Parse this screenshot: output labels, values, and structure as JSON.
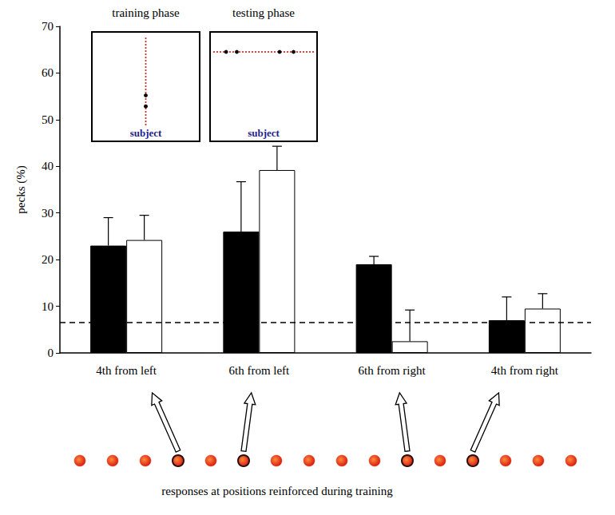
{
  "chart_data": {
    "type": "bar",
    "categories": [
      "4th from left",
      "6th from left",
      "6th from right",
      "4th from right"
    ],
    "series": [
      {
        "color": "#000000",
        "values": [
          23,
          26,
          19,
          7
        ],
        "errors": [
          6,
          10.7,
          1.7,
          5
        ]
      },
      {
        "color": "#ffffff",
        "values": [
          24.2,
          39.2,
          2.5,
          9.5
        ],
        "errors": [
          5.3,
          5.1,
          6.7,
          3.2
        ]
      }
    ],
    "y_label": "pecks (%)",
    "ylim": [
      0,
      70
    ],
    "yticks": [
      0,
      10,
      20,
      30,
      40,
      50,
      60,
      70
    ],
    "reference_line": 6.5,
    "grid": false,
    "insets": [
      {
        "title": "training phase",
        "label": "subject"
      },
      {
        "title": "testing phase",
        "label": "subject"
      }
    ],
    "position_row": {
      "count": 16,
      "reinforced": [
        4,
        6,
        11,
        13
      ],
      "caption": "responses at positions reinforced during training"
    }
  }
}
